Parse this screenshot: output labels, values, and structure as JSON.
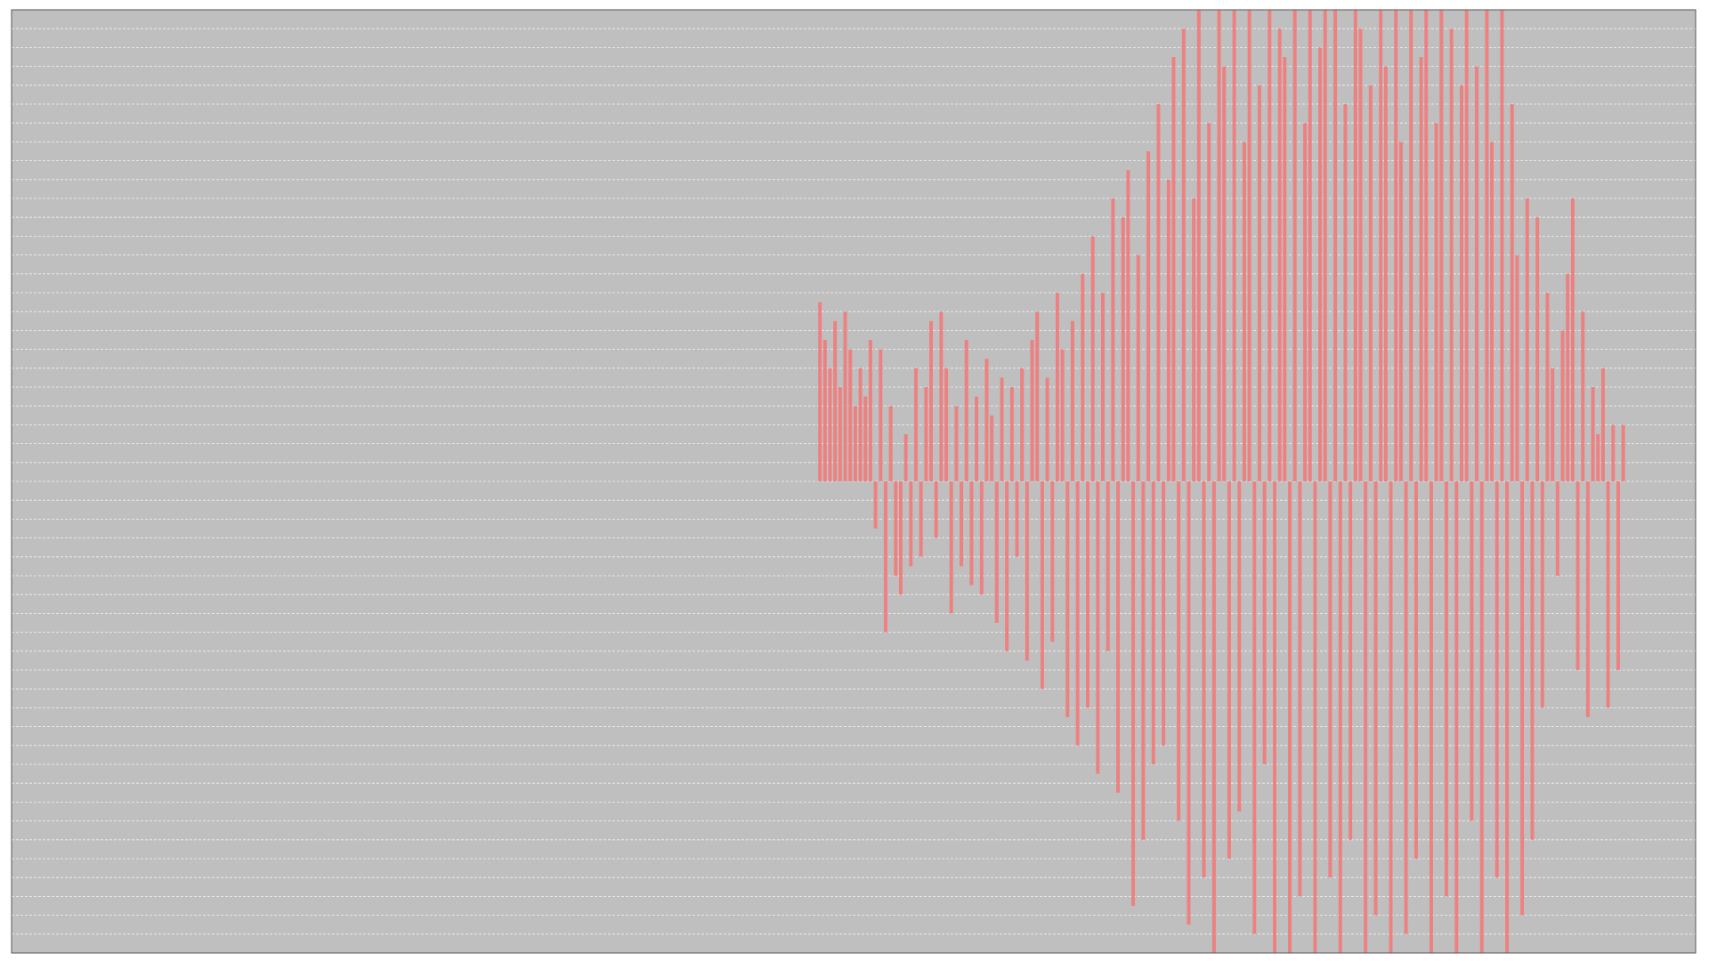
{
  "chart_data": {
    "type": "bar",
    "color": "#f47575",
    "background": "#bfbfbf",
    "grid": true,
    "xlim": [
      0,
      1000
    ],
    "ylim": [
      -50,
      50
    ],
    "yticks": [
      -50,
      -48,
      -46,
      -44,
      -42,
      -40,
      -38,
      -36,
      -34,
      -32,
      -30,
      -28,
      -26,
      -24,
      -22,
      -20,
      -18,
      -16,
      -14,
      -12,
      -10,
      -8,
      -6,
      -4,
      -2,
      0,
      2,
      4,
      6,
      8,
      10,
      12,
      14,
      16,
      18,
      20,
      22,
      24,
      26,
      28,
      30,
      32,
      34,
      36,
      38,
      40,
      42,
      44,
      46,
      48,
      50
    ],
    "x": [
      480,
      483,
      486,
      489,
      492,
      495,
      498,
      501,
      504,
      507,
      510,
      513,
      516,
      519,
      522,
      525,
      528,
      531,
      534,
      537,
      540,
      543,
      546,
      549,
      552,
      555,
      558,
      561,
      564,
      567,
      570,
      573,
      576,
      579,
      582,
      585,
      588,
      591,
      594,
      597,
      600,
      603,
      606,
      609,
      612,
      615,
      618,
      621,
      624,
      627,
      630,
      633,
      636,
      639,
      642,
      645,
      648,
      651,
      654,
      657,
      660,
      663,
      666,
      669,
      672,
      675,
      678,
      681,
      684,
      687,
      690,
      693,
      696,
      699,
      702,
      705,
      708,
      711,
      714,
      717,
      720,
      723,
      726,
      729,
      732,
      735,
      738,
      741,
      744,
      747,
      750,
      753,
      756,
      759,
      762,
      765,
      768,
      771,
      774,
      777,
      780,
      783,
      786,
      789,
      792,
      795,
      798,
      801,
      804,
      807,
      810,
      813,
      816,
      819,
      822,
      825,
      828,
      831,
      834,
      837,
      840,
      843,
      846,
      849,
      852,
      855,
      858,
      861,
      864,
      867,
      870,
      873,
      876,
      879,
      882,
      885,
      888,
      891,
      894,
      897,
      900,
      903,
      906,
      909,
      912,
      915,
      918,
      921,
      924,
      927,
      930,
      933,
      936,
      939,
      942,
      945,
      948,
      951,
      954,
      957
    ],
    "values": [
      19,
      15,
      12,
      17,
      10,
      18,
      14,
      8,
      12,
      9,
      15,
      -5,
      14,
      -16,
      8,
      -10,
      -12,
      5,
      -9,
      12,
      -8,
      10,
      17,
      -6,
      18,
      12,
      -14,
      8,
      -9,
      15,
      -11,
      9,
      -12,
      13,
      7,
      -15,
      11,
      -18,
      10,
      -8,
      12,
      -19,
      15,
      18,
      -22,
      11,
      -17,
      20,
      14,
      -25,
      17,
      -28,
      22,
      -24,
      26,
      -31,
      20,
      -18,
      30,
      -33,
      28,
      33,
      -45,
      24,
      -38,
      35,
      -30,
      40,
      -28,
      32,
      45,
      -36,
      48,
      -47,
      30,
      50,
      -42,
      38,
      -50,
      50,
      44,
      -40,
      50,
      -35,
      36,
      50,
      -48,
      42,
      -30,
      50,
      -50,
      48,
      45,
      -50,
      50,
      -44,
      38,
      50,
      -50,
      46,
      50,
      -42,
      50,
      -50,
      40,
      -38,
      50,
      48,
      -50,
      42,
      -46,
      50,
      44,
      -50,
      50,
      36,
      -48,
      50,
      -40,
      45,
      50,
      -50,
      38,
      50,
      -44,
      48,
      -50,
      42,
      50,
      -36,
      44,
      -50,
      50,
      36,
      -42,
      50,
      -50,
      40,
      24,
      -46,
      30,
      -38,
      28,
      -24,
      20,
      12,
      -10,
      16,
      22,
      30,
      -20,
      18,
      -25,
      10,
      5,
      12,
      -24,
      6,
      -20,
      6
    ]
  }
}
